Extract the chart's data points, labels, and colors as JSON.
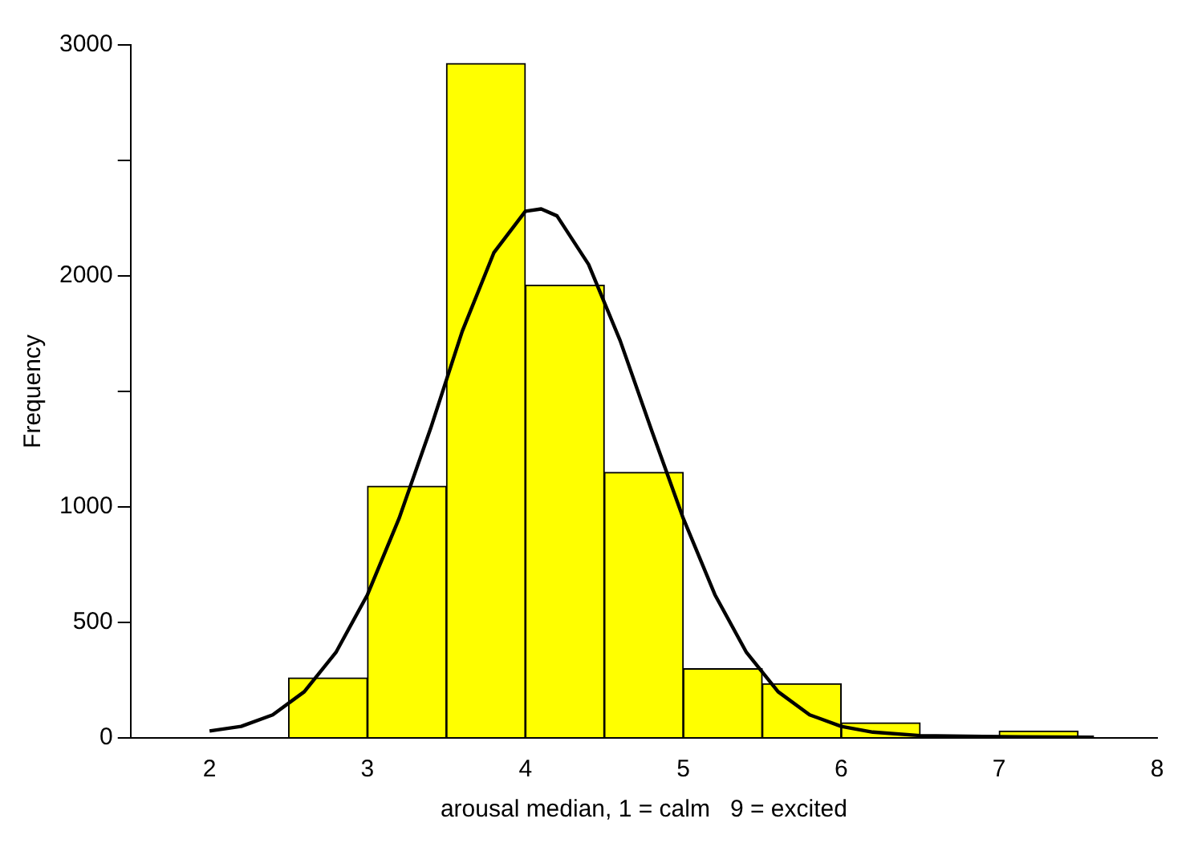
{
  "chart_data": {
    "type": "histogram",
    "xlabel": "arousal median, 1 = calm   9 = excited",
    "ylabel": "Frequency",
    "bins": [
      2.5,
      3,
      3.5,
      4,
      4.5,
      5,
      5.5,
      6,
      6.5,
      7,
      7.5
    ],
    "values": [
      260,
      1090,
      2920,
      1960,
      1150,
      300,
      235,
      65,
      10,
      30
    ],
    "color": "#ffff00",
    "series": [
      {
        "type": "line",
        "color": "#000000",
        "x": [
          2.0,
          2.2,
          2.4,
          2.6,
          2.8,
          3.0,
          3.2,
          3.4,
          3.6,
          3.8,
          4.0,
          4.1,
          4.2,
          4.4,
          4.6,
          4.8,
          5.0,
          5.2,
          5.4,
          5.6,
          5.8,
          6.0,
          6.2,
          6.5,
          7.0,
          7.6
        ],
        "values": [
          30,
          50,
          100,
          200,
          370,
          620,
          950,
          1340,
          1760,
          2100,
          2280,
          2290,
          2260,
          2050,
          1720,
          1330,
          950,
          620,
          370,
          200,
          100,
          50,
          25,
          10,
          5,
          3
        ]
      }
    ],
    "xlim": [
      1.5,
      8
    ],
    "xticks": [
      2,
      3,
      4,
      5,
      6,
      7,
      8
    ],
    "ylim": [
      0,
      3000
    ],
    "yticks": [
      0,
      500,
      1000,
      {
        "value": 1500,
        "label": null
      },
      2000,
      {
        "value": 2500,
        "label": null
      },
      3000
    ],
    "grid": false,
    "legend": false,
    "marker": "none",
    "line_style": "solid"
  }
}
